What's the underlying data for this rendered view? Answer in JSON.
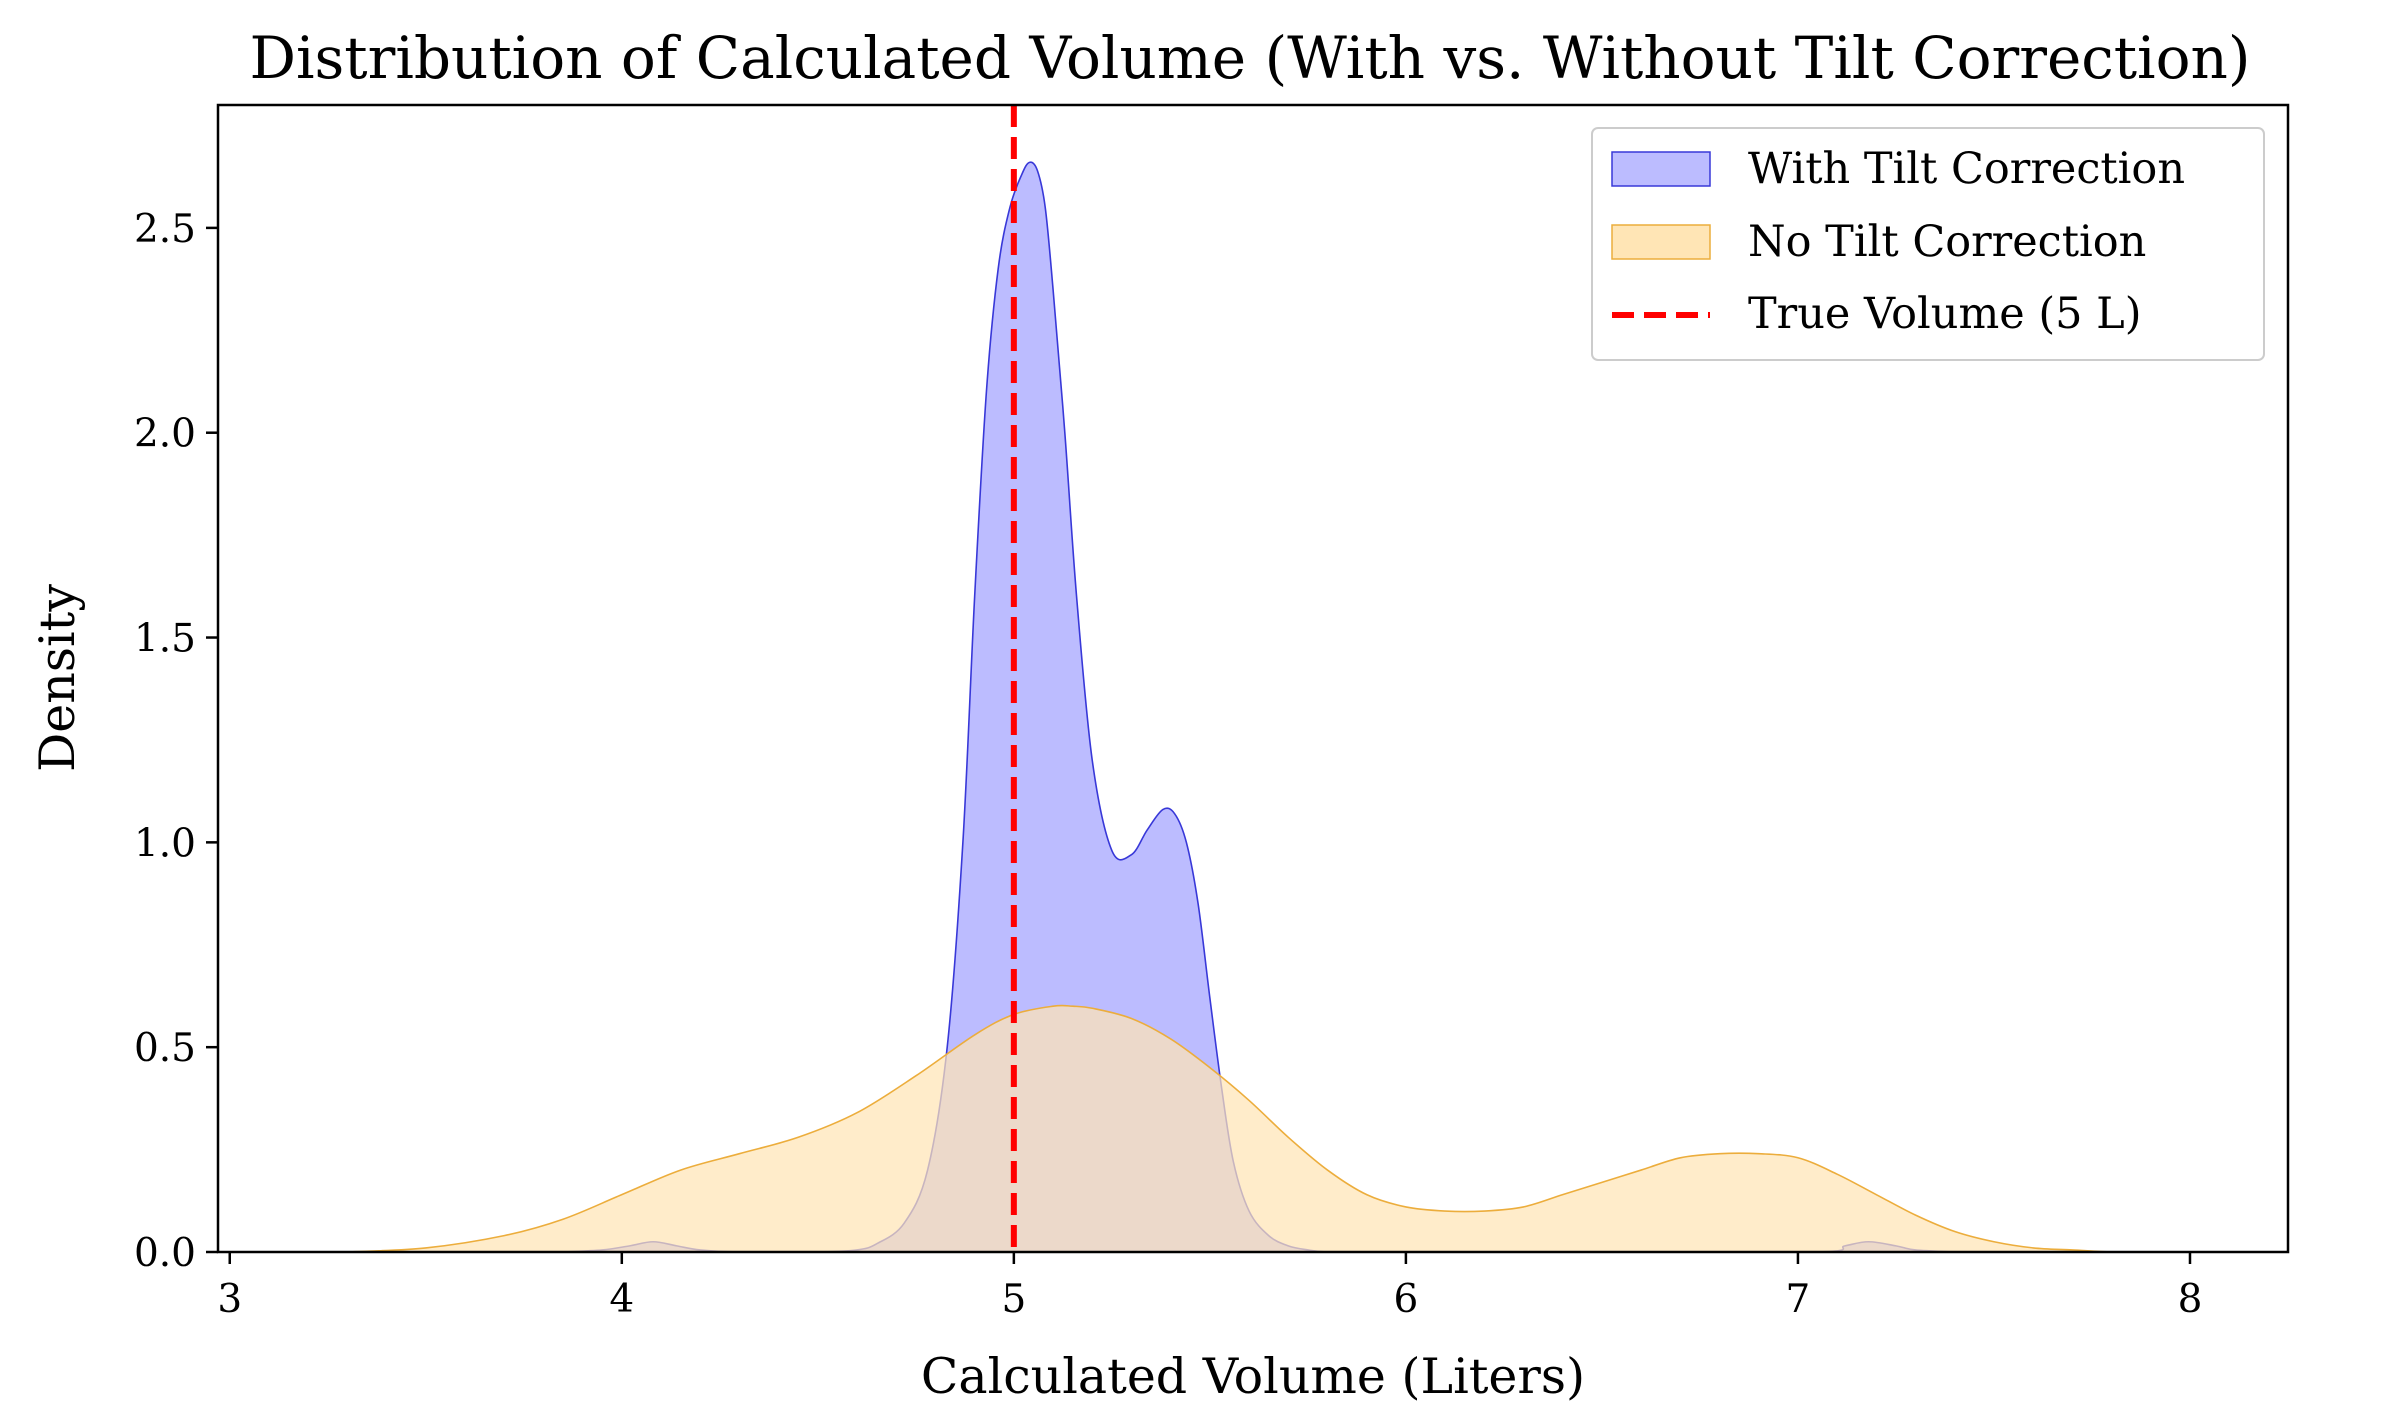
{
  "chart_data": {
    "type": "area",
    "title": "Distribution of Calculated Volume (With vs. Without Tilt Correction)",
    "xlabel": "Calculated Volume (Liters)",
    "ylabel": "Density",
    "xlim": [
      2.97,
      8.25
    ],
    "ylim": [
      0,
      2.8
    ],
    "xticks": [
      3,
      4,
      5,
      6,
      7,
      8
    ],
    "xtick_labels": [
      "3",
      "4",
      "5",
      "6",
      "7",
      "8"
    ],
    "yticks": [
      0.0,
      0.5,
      1.0,
      1.5,
      2.0,
      2.5
    ],
    "ytick_labels": [
      "0.0",
      "0.5",
      "1.0",
      "1.5",
      "2.0",
      "2.5"
    ],
    "grid": false,
    "legend_position": "top-right",
    "series": [
      {
        "name": "With Tilt Correction",
        "fill": "#bcbcff",
        "stroke": "#3838d8",
        "x": [
          3.85,
          3.95,
          4.02,
          4.08,
          4.14,
          4.2,
          4.3,
          4.5,
          4.6,
          4.65,
          4.72,
          4.78,
          4.83,
          4.87,
          4.9,
          4.93,
          4.96,
          4.99,
          5.02,
          5.04,
          5.06,
          5.08,
          5.1,
          5.13,
          5.16,
          5.2,
          5.25,
          5.3,
          5.34,
          5.38,
          5.41,
          5.44,
          5.47,
          5.5,
          5.53,
          5.56,
          5.6,
          5.65,
          5.7,
          5.75,
          5.8,
          5.9,
          6.0,
          6.5,
          7.05,
          7.12,
          7.18,
          7.25,
          7.3,
          7.4
        ],
        "y": [
          0.0,
          0.005,
          0.015,
          0.025,
          0.015,
          0.005,
          0.0,
          0.0,
          0.005,
          0.02,
          0.07,
          0.2,
          0.5,
          1.0,
          1.6,
          2.1,
          2.4,
          2.55,
          2.63,
          2.66,
          2.64,
          2.55,
          2.35,
          2.0,
          1.6,
          1.2,
          0.98,
          0.97,
          1.03,
          1.08,
          1.07,
          1.0,
          0.85,
          0.62,
          0.4,
          0.22,
          0.1,
          0.04,
          0.015,
          0.005,
          0.0,
          0.0,
          0.0,
          0.0,
          0.0,
          0.015,
          0.025,
          0.015,
          0.005,
          0.0
        ]
      },
      {
        "name": "No Tilt Correction",
        "fill": "#ffe5b5",
        "stroke": "#ecad3c",
        "x": [
          3.3,
          3.5,
          3.7,
          3.85,
          4.0,
          4.15,
          4.3,
          4.45,
          4.6,
          4.75,
          4.9,
          5.0,
          5.1,
          5.15,
          5.2,
          5.3,
          5.4,
          5.5,
          5.6,
          5.7,
          5.8,
          5.9,
          6.0,
          6.1,
          6.2,
          6.3,
          6.4,
          6.5,
          6.6,
          6.7,
          6.8,
          6.9,
          7.0,
          7.1,
          7.2,
          7.3,
          7.4,
          7.5,
          7.6,
          7.7,
          7.8,
          7.9
        ],
        "y": [
          0.0,
          0.01,
          0.04,
          0.08,
          0.14,
          0.2,
          0.24,
          0.28,
          0.34,
          0.43,
          0.53,
          0.58,
          0.6,
          0.6,
          0.595,
          0.57,
          0.52,
          0.45,
          0.37,
          0.28,
          0.2,
          0.14,
          0.11,
          0.1,
          0.1,
          0.11,
          0.14,
          0.17,
          0.2,
          0.23,
          0.24,
          0.24,
          0.23,
          0.19,
          0.14,
          0.09,
          0.05,
          0.025,
          0.01,
          0.005,
          0.0,
          0.0
        ]
      }
    ],
    "reference_lines": [
      {
        "name": "True Volume (5 L)",
        "x": 5,
        "color": "#ff0000",
        "style": "dashed"
      }
    ]
  }
}
